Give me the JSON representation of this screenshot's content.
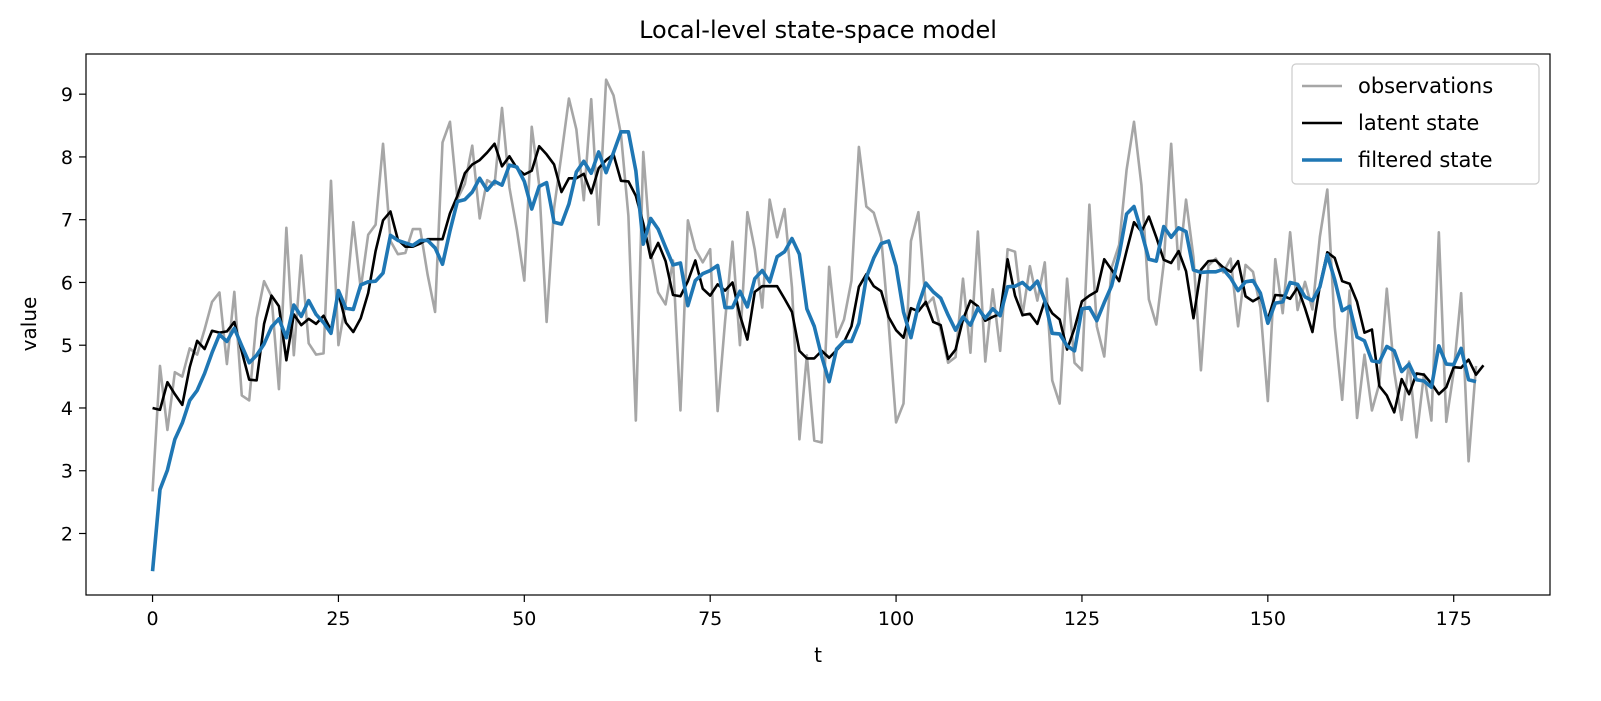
{
  "chart_data": {
    "type": "line",
    "title": "Local-level state-space model",
    "xlabel": "t",
    "ylabel": "value",
    "xlim": [
      -8.95,
      187.95
    ],
    "ylim": [
      1.02,
      9.64
    ],
    "xticks": [
      0,
      25,
      50,
      75,
      100,
      125,
      150,
      175
    ],
    "yticks": [
      2,
      3,
      4,
      5,
      6,
      7,
      8,
      9
    ],
    "grid": false,
    "legend": {
      "placement": "top-right",
      "entries": [
        "observations",
        "latent state",
        "filtered state"
      ]
    },
    "series": [
      {
        "name": "observations",
        "color": "#a6a6a6",
        "x_start": 0,
        "values": [
          2.67,
          4.67,
          3.65,
          4.57,
          4.5,
          4.95,
          4.85,
          5.25,
          5.69,
          5.84,
          4.7,
          5.85,
          4.2,
          4.12,
          5.43,
          6.02,
          5.78,
          4.3,
          6.87,
          4.84,
          6.43,
          5.03,
          4.85,
          4.87,
          7.62,
          5.0,
          5.7,
          6.96,
          5.9,
          6.76,
          6.92,
          8.21,
          6.66,
          6.45,
          6.47,
          6.85,
          6.85,
          6.12,
          5.53,
          8.23,
          8.56,
          7.33,
          7.57,
          8.18,
          7.02,
          7.63,
          7.56,
          8.78,
          7.51,
          6.84,
          6.03,
          8.48,
          7.55,
          5.37,
          7.18,
          8.04,
          8.93,
          8.44,
          7.31,
          8.92,
          6.92,
          9.23,
          8.98,
          8.36,
          7.06,
          3.8,
          8.08,
          6.5,
          5.84,
          5.65,
          6.35,
          3.96,
          6.99,
          6.53,
          6.32,
          6.53,
          3.95,
          5.38,
          6.65,
          5.0,
          7.12,
          6.52,
          5.6,
          7.32,
          6.72,
          7.17,
          5.92,
          3.5,
          4.84,
          3.48,
          3.45,
          6.25,
          5.13,
          5.41,
          6.03,
          8.16,
          7.21,
          7.11,
          6.71,
          5.34,
          3.77,
          4.07,
          6.66,
          7.12,
          5.63,
          5.76,
          5.24,
          4.72,
          4.81,
          6.06,
          4.88,
          6.81,
          4.74,
          5.89,
          4.91,
          6.53,
          6.49,
          5.47,
          6.26,
          5.71,
          6.32,
          4.44,
          4.07,
          6.06,
          4.72,
          4.6,
          7.24,
          5.3,
          4.82,
          6.24,
          6.6,
          7.79,
          8.56,
          7.55,
          5.73,
          5.33,
          6.3,
          8.21,
          6.21,
          7.32,
          6.4,
          4.6,
          6.27,
          6.38,
          6.16,
          6.38,
          5.3,
          6.28,
          6.17,
          5.6,
          4.11,
          6.37,
          5.51,
          6.8,
          5.56,
          6.01,
          5.57,
          6.73,
          7.48,
          5.29,
          4.13,
          5.87,
          3.84,
          4.85,
          3.96,
          4.39,
          5.9,
          4.58,
          3.81,
          4.74,
          3.53,
          4.54,
          3.8,
          6.8,
          3.78,
          4.58,
          5.83,
          3.15,
          4.67
        ]
      },
      {
        "name": "latent state",
        "color": "#000000",
        "x_start": 0,
        "values": [
          4.0,
          3.97,
          4.41,
          4.22,
          4.05,
          4.65,
          5.07,
          4.94,
          5.23,
          5.2,
          5.22,
          5.37,
          4.9,
          4.45,
          4.44,
          5.34,
          5.79,
          5.62,
          4.76,
          5.49,
          5.32,
          5.42,
          5.34,
          5.47,
          5.24,
          5.83,
          5.36,
          5.21,
          5.43,
          5.83,
          6.5,
          6.99,
          7.13,
          6.68,
          6.57,
          6.57,
          6.62,
          6.69,
          6.69,
          6.69,
          7.1,
          7.38,
          7.74,
          7.88,
          7.95,
          8.07,
          8.21,
          7.85,
          8.01,
          7.82,
          7.72,
          7.78,
          8.17,
          8.04,
          7.88,
          7.44,
          7.66,
          7.66,
          7.73,
          7.42,
          7.82,
          7.95,
          8.04,
          7.62,
          7.61,
          7.38,
          6.94,
          6.39,
          6.63,
          6.34,
          5.8,
          5.78,
          6.02,
          6.35,
          5.9,
          5.79,
          5.97,
          5.87,
          6.0,
          5.48,
          5.09,
          5.85,
          5.94,
          5.94,
          5.94,
          5.74,
          5.53,
          4.91,
          4.79,
          4.79,
          4.91,
          4.8,
          4.92,
          5.05,
          5.3,
          5.93,
          6.13,
          5.94,
          5.86,
          5.45,
          5.24,
          5.12,
          5.59,
          5.54,
          5.69,
          5.37,
          5.32,
          4.78,
          4.93,
          5.41,
          5.71,
          5.62,
          5.39,
          5.45,
          5.5,
          6.37,
          5.79,
          5.48,
          5.5,
          5.34,
          5.71,
          5.51,
          5.41,
          4.93,
          5.27,
          5.7,
          5.79,
          5.86,
          6.37,
          6.2,
          6.02,
          6.5,
          6.96,
          6.81,
          7.05,
          6.72,
          6.36,
          6.31,
          6.5,
          6.18,
          5.43,
          6.2,
          6.34,
          6.35,
          6.24,
          6.17,
          6.34,
          5.78,
          5.7,
          5.77,
          5.41,
          5.8,
          5.79,
          5.74,
          5.92,
          5.59,
          5.21,
          5.95,
          6.48,
          6.39,
          6.02,
          5.98,
          5.69,
          5.2,
          5.25,
          4.35,
          4.2,
          3.93,
          4.46,
          4.22,
          4.55,
          4.53,
          4.39,
          4.22,
          4.33,
          4.65,
          4.64,
          4.77,
          4.53,
          4.68
        ]
      },
      {
        "name": "filtered state",
        "color": "#1f77b4",
        "x_start": 0,
        "values": [
          1.4,
          2.7,
          3.01,
          3.5,
          3.76,
          4.12,
          4.28,
          4.55,
          4.88,
          5.17,
          5.06,
          5.27,
          4.99,
          4.72,
          4.84,
          5.02,
          5.29,
          5.42,
          5.12,
          5.64,
          5.46,
          5.71,
          5.49,
          5.36,
          5.19,
          5.87,
          5.59,
          5.57,
          5.96,
          6.01,
          6.02,
          6.15,
          6.75,
          6.67,
          6.63,
          6.59,
          6.67,
          6.67,
          6.55,
          6.29,
          6.82,
          7.29,
          7.32,
          7.44,
          7.66,
          7.47,
          7.61,
          7.55,
          7.87,
          7.84,
          7.61,
          7.17,
          7.53,
          7.59,
          6.96,
          6.93,
          7.25,
          7.76,
          7.93,
          7.74,
          8.08,
          7.75,
          8.07,
          8.4,
          8.4,
          7.78,
          6.61,
          7.02,
          6.85,
          6.56,
          6.28,
          6.31,
          5.63,
          6.03,
          6.14,
          6.19,
          6.27,
          5.6,
          5.6,
          5.86,
          5.61,
          6.06,
          6.19,
          6.01,
          6.41,
          6.49,
          6.7,
          6.45,
          5.58,
          5.3,
          4.82,
          4.42,
          4.94,
          5.06,
          5.06,
          5.35,
          6.08,
          6.39,
          6.62,
          6.66,
          6.26,
          5.53,
          5.12,
          5.64,
          5.99,
          5.85,
          5.75,
          5.48,
          5.24,
          5.45,
          5.32,
          5.59,
          5.43,
          5.58,
          5.47,
          5.93,
          5.94,
          6.0,
          5.89,
          6.02,
          5.71,
          5.19,
          5.18,
          4.99,
          4.91,
          5.58,
          5.6,
          5.39,
          5.68,
          5.95,
          6.44,
          7.09,
          7.21,
          6.81,
          6.37,
          6.34,
          6.89,
          6.72,
          6.87,
          6.81,
          6.2,
          6.16,
          6.17,
          6.17,
          6.21,
          6.07,
          5.87,
          6.01,
          6.03,
          5.83,
          5.35,
          5.67,
          5.69,
          6.0,
          5.97,
          5.77,
          5.71,
          5.93,
          6.44,
          6.04,
          5.55,
          5.62,
          5.13,
          5.07,
          4.75,
          4.73,
          4.98,
          4.91,
          4.58,
          4.7,
          4.45,
          4.43,
          4.33,
          4.99,
          4.7,
          4.69,
          4.95,
          4.45,
          4.42
        ]
      }
    ]
  }
}
